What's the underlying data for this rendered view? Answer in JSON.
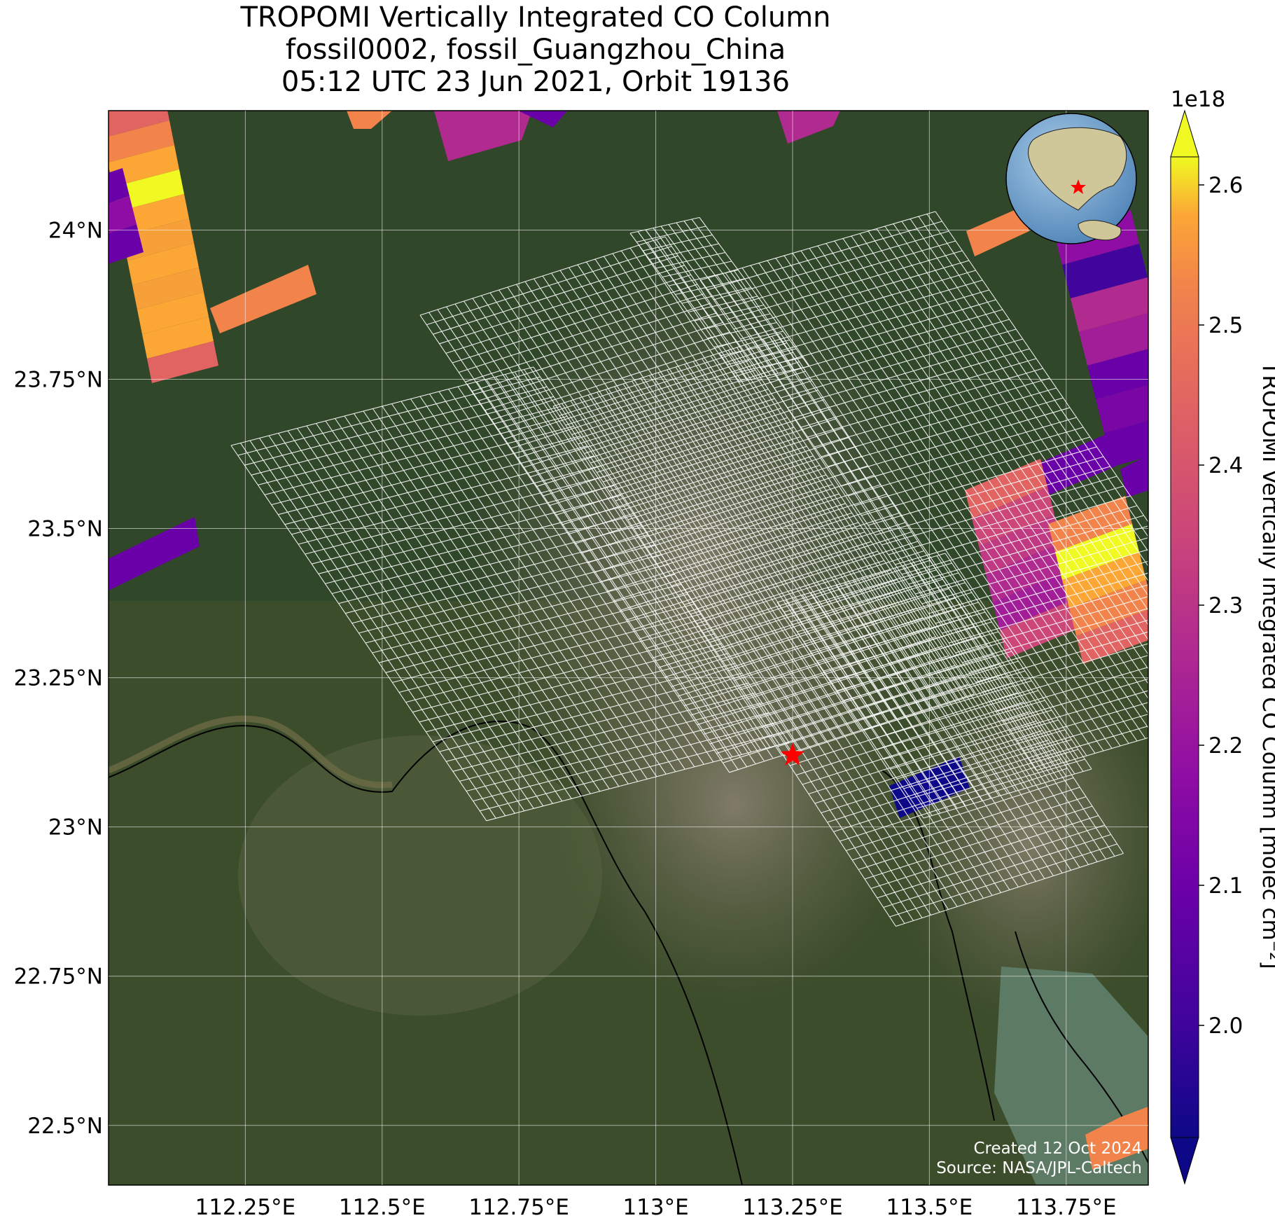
{
  "title": {
    "line1": "TROPOMI Vertically Integrated CO Column",
    "line2": "fossil0002, fossil_Guangzhou_China",
    "line3": "05:12 UTC 23 Jun 2021, Orbit 19136"
  },
  "map": {
    "lon_range": [
      112.0,
      113.9
    ],
    "lat_range": [
      22.4,
      24.2
    ],
    "lon_ticks": [
      "112.25°E",
      "112.5°E",
      "112.75°E",
      "113°E",
      "113.25°E",
      "113.5°E",
      "113.75°E"
    ],
    "lat_ticks": [
      "24°N",
      "23.75°N",
      "23.5°N",
      "23.25°N",
      "23°N",
      "22.75°N",
      "22.5°N"
    ],
    "gridlines": true,
    "target_marker": {
      "icon": "red-star-icon",
      "lon": 113.25,
      "lat": 23.12,
      "color": "#ff0000"
    },
    "inset_globe": {
      "icon": "globe-icon",
      "placement": "top-right",
      "center_region": "East Asia"
    }
  },
  "colorbar": {
    "label": "TROPOMI Vertically Integrated CO Column [molec cm⁻²]",
    "multiplier": "1e18",
    "min": 1.92,
    "max": 2.62,
    "ticks": [
      "2.0",
      "2.1",
      "2.2",
      "2.3",
      "2.4",
      "2.5",
      "2.6"
    ],
    "colormap": "plasma"
  },
  "footer": {
    "created": "Created 12 Oct 2024",
    "source": "Source: NASA/JPL-Caltech"
  }
}
